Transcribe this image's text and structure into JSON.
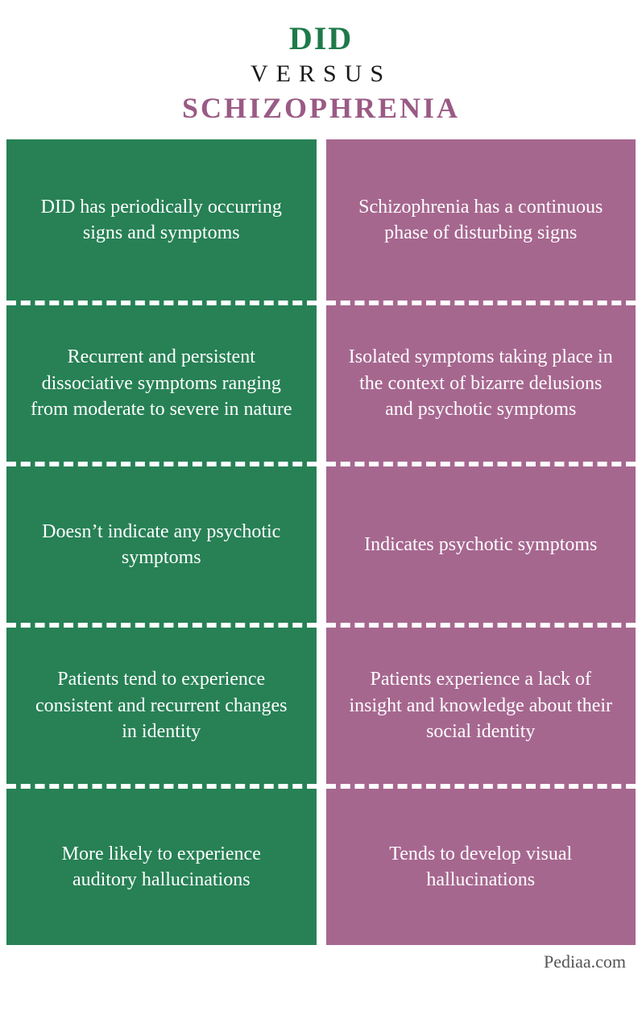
{
  "header": {
    "line1": "DID",
    "line2": "VERSUS",
    "line3": "SCHIZOPHRENIA"
  },
  "colors": {
    "left_bg": "#278155",
    "right_bg": "#a6678f",
    "left_title": "#1e7a4a",
    "right_title": "#9a5a85",
    "versus": "#1a1a1a",
    "cell_text": "#ffffff",
    "divider": "#ffffff",
    "footer": "#555555"
  },
  "typography": {
    "title1_fontsize": 40,
    "title2_fontsize": 30,
    "title3_fontsize": 36,
    "cell_fontsize": 24,
    "font_family": "Georgia, serif"
  },
  "layout": {
    "columns": 2,
    "rows": 5,
    "gap": 12,
    "divider_style": "dashed",
    "divider_width": 6,
    "cell_min_height": 200
  },
  "left": {
    "cells": [
      "DID has periodically occurring signs and symptoms",
      "Recurrent and persistent dissociative symptoms ranging from moderate to severe in nature",
      "Doesn’t indicate any psychotic symptoms",
      "Patients tend to experience consistent and recurrent changes in identity",
      "More likely to experience auditory hallucinations"
    ]
  },
  "right": {
    "cells": [
      "Schizophrenia has a continuous phase of disturbing signs",
      "Isolated symptoms taking place in the context of bizarre delusions and psychotic symptoms",
      "Indicates psychotic symptoms",
      "Patients  experience a lack of insight and knowledge about their social identity",
      "Tends to develop visual hallucinations"
    ]
  },
  "footer": {
    "text": "Pediaa.com"
  }
}
